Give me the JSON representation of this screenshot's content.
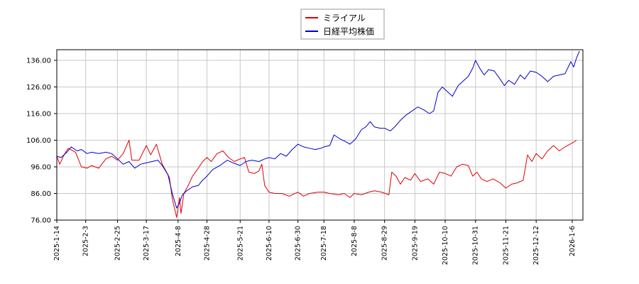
{
  "chart_data": {
    "type": "line",
    "title": "",
    "xlabel": "",
    "ylabel": "",
    "ylim": [
      76,
      140
    ],
    "yticks": [
      "76.00",
      "86.00",
      "96.00",
      "106.00",
      "116.00",
      "126.00",
      "136.00"
    ],
    "xticks": [
      "2025-1-14",
      "2025-2-3",
      "2025-2-25",
      "2025-3-17",
      "2025-4-8",
      "2025-4-28",
      "2025-5-21",
      "2025-6-10",
      "2025-6-30",
      "2025-7-18",
      "2025-8-8",
      "2025-8-29",
      "2025-9-19",
      "2025-10-10",
      "2025-10-31",
      "2025-11-21",
      "2025-12-12",
      "2026-1-6"
    ],
    "grid": true,
    "legend_position": "top-center",
    "series": [
      {
        "name": "ミライアル",
        "color": "#e00000",
        "points": [
          [
            "2025-1-14",
            100.0
          ],
          [
            "2025-1-16",
            97.0
          ],
          [
            "2025-1-19",
            100.5
          ],
          [
            "2025-1-22",
            103.0
          ],
          [
            "2025-1-27",
            101.5
          ],
          [
            "2025-1-31",
            96.0
          ],
          [
            "2025-2-4",
            95.5
          ],
          [
            "2025-2-7",
            96.5
          ],
          [
            "2025-2-12",
            95.5
          ],
          [
            "2025-2-17",
            99.0
          ],
          [
            "2025-2-21",
            100.0
          ],
          [
            "2025-2-25",
            98.5
          ],
          [
            "2025-3-1",
            101.0
          ],
          [
            "2025-3-5",
            106.0
          ],
          [
            "2025-3-7",
            98.5
          ],
          [
            "2025-3-12",
            98.5
          ],
          [
            "2025-3-17",
            104.0
          ],
          [
            "2025-3-20",
            100.5
          ],
          [
            "2025-3-24",
            104.5
          ],
          [
            "2025-3-28",
            97.0
          ],
          [
            "2025-4-2",
            92.0
          ],
          [
            "2025-4-4",
            84.0
          ],
          [
            "2025-4-7",
            77.0
          ],
          [
            "2025-4-9",
            84.5
          ],
          [
            "2025-4-10",
            78.5
          ],
          [
            "2025-4-12",
            86.0
          ],
          [
            "2025-4-15",
            89.0
          ],
          [
            "2025-4-18",
            92.5
          ],
          [
            "2025-4-22",
            95.5
          ],
          [
            "2025-4-25",
            98.0
          ],
          [
            "2025-4-28",
            99.5
          ],
          [
            "2025-5-1",
            98.0
          ],
          [
            "2025-5-5",
            101.0
          ],
          [
            "2025-5-9",
            102.0
          ],
          [
            "2025-5-13",
            99.5
          ],
          [
            "2025-5-17",
            98.0
          ],
          [
            "2025-5-21",
            99.0
          ],
          [
            "2025-5-24",
            99.5
          ],
          [
            "2025-5-27",
            94.0
          ],
          [
            "2025-5-31",
            93.5
          ],
          [
            "2025-6-3",
            94.5
          ],
          [
            "2025-6-5",
            97.0
          ],
          [
            "2025-6-7",
            89.0
          ],
          [
            "2025-6-10",
            86.5
          ],
          [
            "2025-6-14",
            86.0
          ],
          [
            "2025-6-19",
            86.0
          ],
          [
            "2025-6-24",
            85.0
          ],
          [
            "2025-6-30",
            86.5
          ],
          [
            "2025-7-4",
            85.0
          ],
          [
            "2025-7-8",
            86.0
          ],
          [
            "2025-7-14",
            86.5
          ],
          [
            "2025-7-18",
            86.5
          ],
          [
            "2025-7-22",
            86.0
          ],
          [
            "2025-7-28",
            85.5
          ],
          [
            "2025-8-1",
            86.0
          ],
          [
            "2025-8-5",
            84.5
          ],
          [
            "2025-8-8",
            86.0
          ],
          [
            "2025-8-13",
            85.5
          ],
          [
            "2025-8-18",
            86.5
          ],
          [
            "2025-8-22",
            87.0
          ],
          [
            "2025-8-27",
            86.5
          ],
          [
            "2025-9-1",
            85.5
          ],
          [
            "2025-9-3",
            94.0
          ],
          [
            "2025-9-6",
            92.5
          ],
          [
            "2025-9-9",
            89.5
          ],
          [
            "2025-9-12",
            92.0
          ],
          [
            "2025-9-16",
            91.0
          ],
          [
            "2025-9-19",
            93.5
          ],
          [
            "2025-9-23",
            90.5
          ],
          [
            "2025-9-28",
            91.5
          ],
          [
            "2025-10-2",
            89.5
          ],
          [
            "2025-10-6",
            94.0
          ],
          [
            "2025-10-10",
            93.5
          ],
          [
            "2025-10-14",
            92.5
          ],
          [
            "2025-10-18",
            96.0
          ],
          [
            "2025-10-22",
            97.0
          ],
          [
            "2025-10-26",
            96.5
          ],
          [
            "2025-10-29",
            92.5
          ],
          [
            "2025-11-1",
            94.0
          ],
          [
            "2025-11-4",
            91.5
          ],
          [
            "2025-11-8",
            90.5
          ],
          [
            "2025-11-12",
            91.5
          ],
          [
            "2025-11-17",
            90.0
          ],
          [
            "2025-11-21",
            88.0
          ],
          [
            "2025-11-25",
            89.5
          ],
          [
            "2025-11-29",
            90.0
          ],
          [
            "2025-12-3",
            91.0
          ],
          [
            "2025-12-6",
            100.5
          ],
          [
            "2025-12-9",
            98.0
          ],
          [
            "2025-12-12",
            101.0
          ],
          [
            "2025-12-16",
            99.0
          ],
          [
            "2025-12-20",
            102.0
          ],
          [
            "2025-12-24",
            104.0
          ],
          [
            "2025-12-28",
            102.0
          ],
          [
            "2026-1-1",
            103.5
          ],
          [
            "2026-1-6",
            105.0
          ],
          [
            "2026-1-9",
            106.0
          ]
        ]
      },
      {
        "name": "日経平均株価",
        "color": "#0000cc",
        "points": [
          [
            "2025-1-14",
            100.0
          ],
          [
            "2025-1-17",
            99.5
          ],
          [
            "2025-1-21",
            101.5
          ],
          [
            "2025-1-24",
            103.5
          ],
          [
            "2025-1-28",
            102.0
          ],
          [
            "2025-1-31",
            102.5
          ],
          [
            "2025-2-4",
            101.0
          ],
          [
            "2025-2-7",
            101.5
          ],
          [
            "2025-2-12",
            101.0
          ],
          [
            "2025-2-17",
            101.5
          ],
          [
            "2025-2-21",
            101.0
          ],
          [
            "2025-2-25",
            99.0
          ],
          [
            "2025-3-1",
            97.0
          ],
          [
            "2025-3-5",
            98.0
          ],
          [
            "2025-3-9",
            95.5
          ],
          [
            "2025-3-13",
            97.0
          ],
          [
            "2025-3-17",
            97.5
          ],
          [
            "2025-3-21",
            98.0
          ],
          [
            "2025-3-25",
            98.5
          ],
          [
            "2025-3-28",
            96.5
          ],
          [
            "2025-4-1",
            93.0
          ],
          [
            "2025-4-4",
            86.0
          ],
          [
            "2025-4-7",
            80.5
          ],
          [
            "2025-4-9",
            82.5
          ],
          [
            "2025-4-11",
            85.5
          ],
          [
            "2025-4-14",
            87.0
          ],
          [
            "2025-4-18",
            88.5
          ],
          [
            "2025-4-22",
            89.0
          ],
          [
            "2025-4-25",
            91.0
          ],
          [
            "2025-4-28",
            92.5
          ],
          [
            "2025-5-2",
            95.0
          ],
          [
            "2025-5-7",
            96.5
          ],
          [
            "2025-5-12",
            98.5
          ],
          [
            "2025-5-16",
            97.5
          ],
          [
            "2025-5-21",
            96.5
          ],
          [
            "2025-5-25",
            98.0
          ],
          [
            "2025-5-29",
            98.5
          ],
          [
            "2025-6-3",
            98.0
          ],
          [
            "2025-6-7",
            99.0
          ],
          [
            "2025-6-10",
            99.5
          ],
          [
            "2025-6-14",
            99.0
          ],
          [
            "2025-6-18",
            101.0
          ],
          [
            "2025-6-22",
            100.0
          ],
          [
            "2025-6-26",
            102.5
          ],
          [
            "2025-6-30",
            104.5
          ],
          [
            "2025-7-4",
            103.5
          ],
          [
            "2025-7-8",
            103.0
          ],
          [
            "2025-7-12",
            102.5
          ],
          [
            "2025-7-16",
            103.0
          ],
          [
            "2025-7-18",
            103.5
          ],
          [
            "2025-7-22",
            104.0
          ],
          [
            "2025-7-25",
            108.0
          ],
          [
            "2025-7-29",
            106.5
          ],
          [
            "2025-8-2",
            105.5
          ],
          [
            "2025-8-5",
            104.5
          ],
          [
            "2025-8-9",
            106.5
          ],
          [
            "2025-8-13",
            110.0
          ],
          [
            "2025-8-16",
            111.0
          ],
          [
            "2025-8-19",
            113.0
          ],
          [
            "2025-8-22",
            111.0
          ],
          [
            "2025-8-26",
            110.5
          ],
          [
            "2025-8-29",
            110.5
          ],
          [
            "2025-9-2",
            109.5
          ],
          [
            "2025-9-5",
            111.0
          ],
          [
            "2025-9-9",
            113.5
          ],
          [
            "2025-9-13",
            115.5
          ],
          [
            "2025-9-17",
            117.0
          ],
          [
            "2025-9-21",
            118.5
          ],
          [
            "2025-9-25",
            117.5
          ],
          [
            "2025-9-29",
            116.0
          ],
          [
            "2025-10-2",
            117.0
          ],
          [
            "2025-10-5",
            124.0
          ],
          [
            "2025-10-8",
            126.0
          ],
          [
            "2025-10-12",
            124.0
          ],
          [
            "2025-10-15",
            122.5
          ],
          [
            "2025-10-19",
            126.5
          ],
          [
            "2025-10-22",
            128.0
          ],
          [
            "2025-10-26",
            130.0
          ],
          [
            "2025-10-29",
            133.0
          ],
          [
            "2025-10-31",
            136.0
          ],
          [
            "2025-11-3",
            133.0
          ],
          [
            "2025-11-6",
            130.5
          ],
          [
            "2025-11-9",
            132.5
          ],
          [
            "2025-11-13",
            132.0
          ],
          [
            "2025-11-17",
            129.0
          ],
          [
            "2025-11-20",
            126.5
          ],
          [
            "2025-11-23",
            128.5
          ],
          [
            "2025-11-27",
            127.0
          ],
          [
            "2025-12-1",
            130.5
          ],
          [
            "2025-12-4",
            129.0
          ],
          [
            "2025-12-8",
            132.0
          ],
          [
            "2025-12-12",
            131.5
          ],
          [
            "2025-12-16",
            130.0
          ],
          [
            "2025-12-20",
            128.0
          ],
          [
            "2025-12-24",
            130.0
          ],
          [
            "2025-12-28",
            130.5
          ],
          [
            "2026-1-1",
            131.0
          ],
          [
            "2026-1-5",
            135.5
          ],
          [
            "2026-1-7",
            133.5
          ],
          [
            "2026-1-9",
            137.0
          ],
          [
            "2026-1-11",
            139.5
          ]
        ]
      }
    ]
  }
}
